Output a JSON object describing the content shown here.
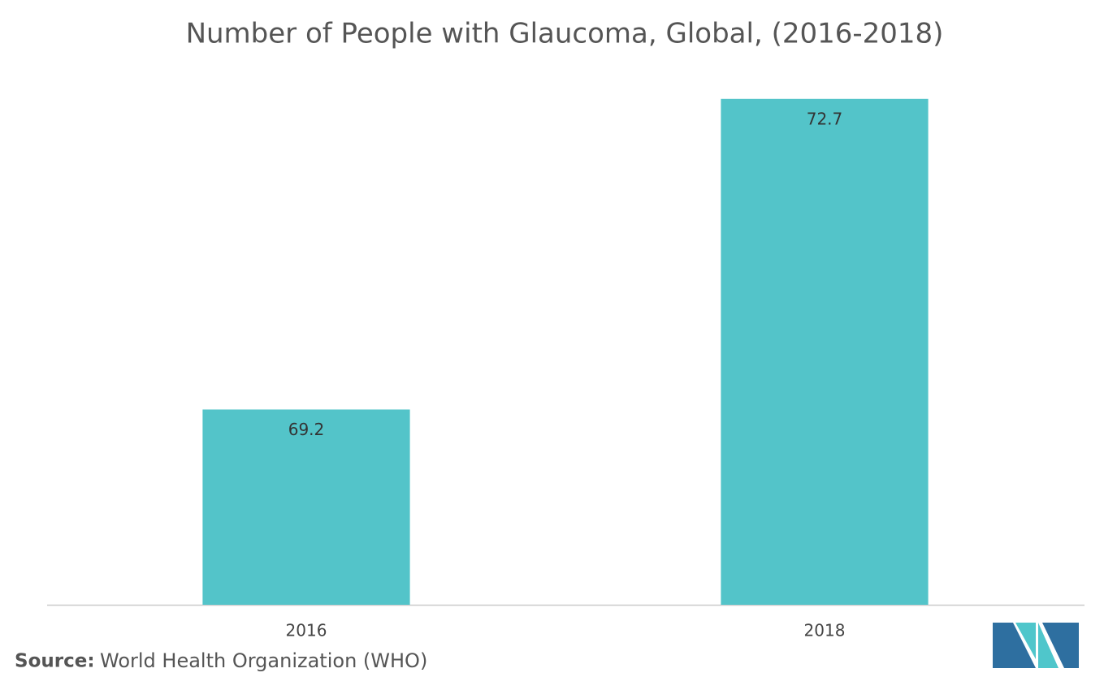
{
  "chart_data": {
    "type": "bar",
    "title": "Number of People with Glaucoma, Global, (2016-2018)",
    "categories": [
      "2016",
      "2018"
    ],
    "values": [
      69.2,
      72.7
    ],
    "color": "#53c4c9",
    "ylim": [
      67,
      73
    ],
    "source_label": "Source:",
    "source": "World Health Organization (WHO)"
  }
}
